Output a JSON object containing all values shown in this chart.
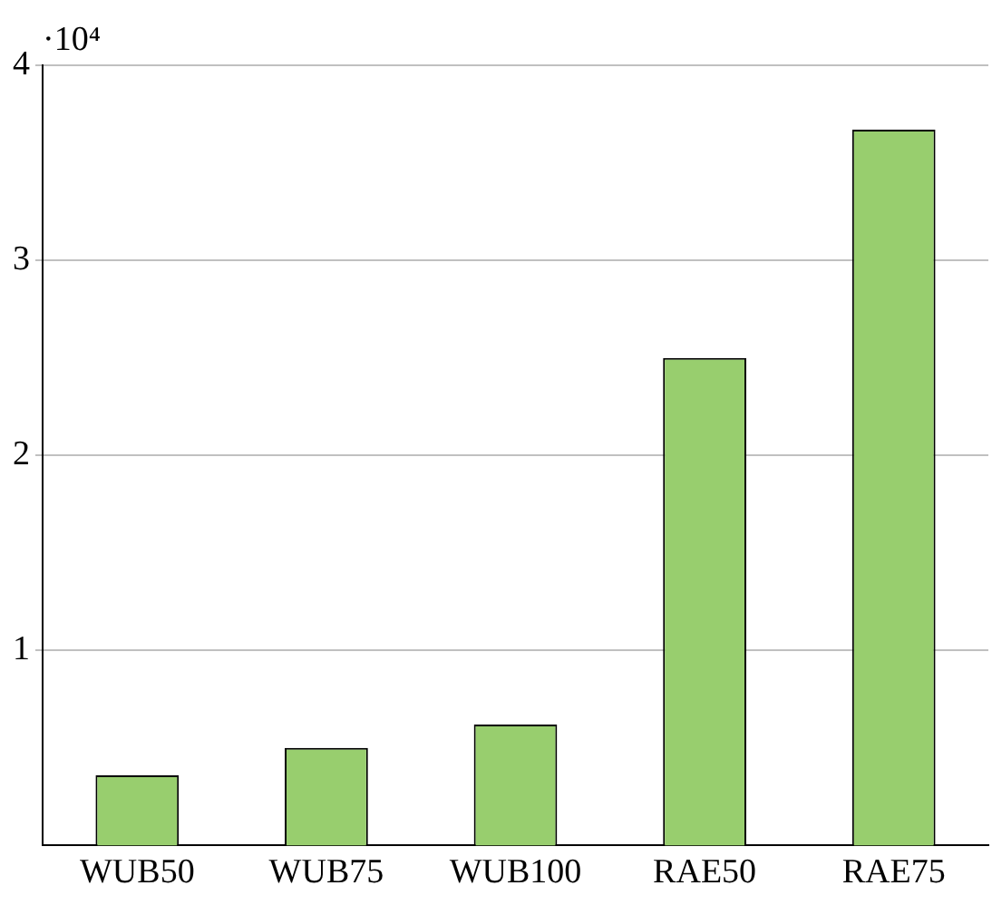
{
  "chart_data": {
    "type": "bar",
    "categories": [
      "WUB50",
      "WUB75",
      "WUB100",
      "RAE50",
      "RAE75"
    ],
    "values": [
      0.36,
      0.5,
      0.62,
      2.5,
      3.67
    ],
    "color": "#98ce6e",
    "ylim": [
      0,
      4
    ],
    "yticks": [
      1,
      2,
      3,
      4
    ],
    "grid": "y",
    "annotations": [
      "·10⁴"
    ]
  }
}
